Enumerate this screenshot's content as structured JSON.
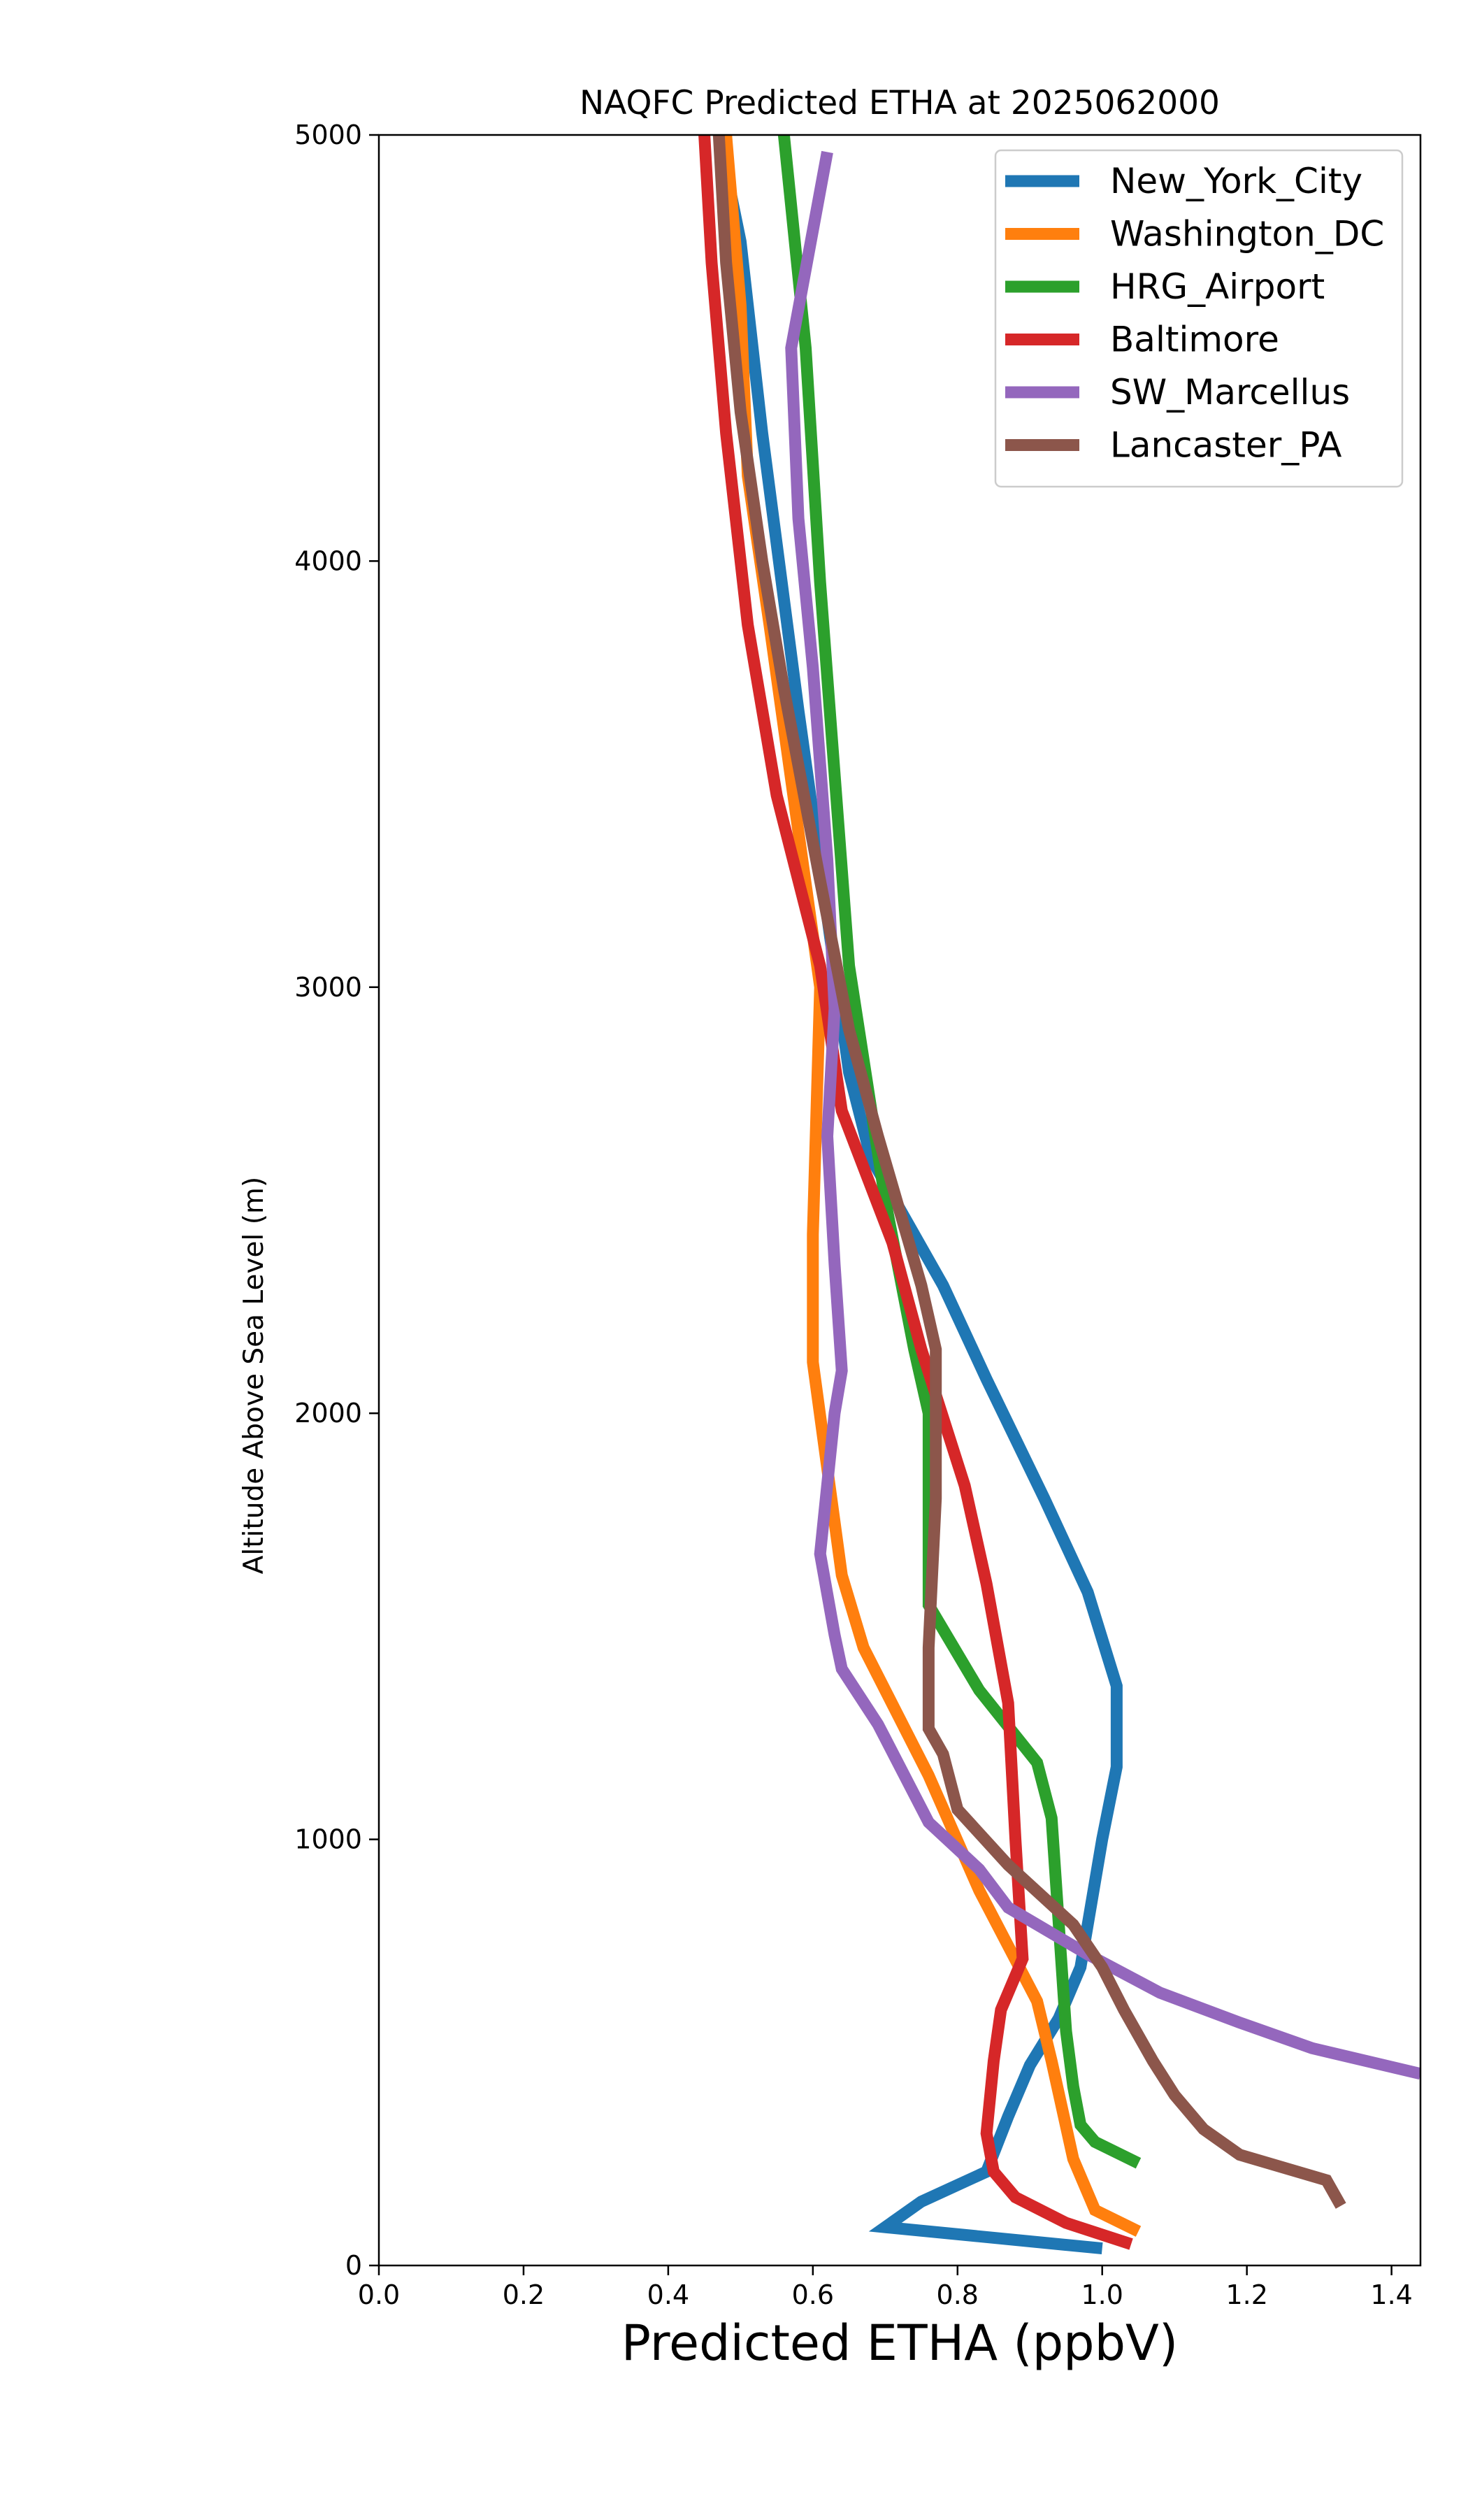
{
  "chart_data": {
    "type": "line",
    "title": "NAQFC Predicted ETHA at 2025062000",
    "xlabel": "Predicted ETHA (ppbV)",
    "ylabel": "Altitude Above Sea Level (m)",
    "xlim": [
      0.0,
      1.44
    ],
    "ylim": [
      0,
      5000
    ],
    "xticks": [
      "0.0",
      "0.2",
      "0.4",
      "0.6",
      "0.8",
      "1.0",
      "1.2",
      "1.4"
    ],
    "yticks": [
      "0",
      "1000",
      "2000",
      "3000",
      "4000",
      "5000"
    ],
    "grid": false,
    "legend_position": "top-right",
    "series": [
      {
        "name": "New_York_City",
        "color": "#1f77b4",
        "points": [
          [
            1.0,
            40
          ],
          [
            0.7,
            90
          ],
          [
            0.75,
            150
          ],
          [
            0.84,
            220
          ],
          [
            0.87,
            350
          ],
          [
            0.9,
            470
          ],
          [
            0.94,
            580
          ],
          [
            0.97,
            700
          ],
          [
            1.0,
            1000
          ],
          [
            1.02,
            1170
          ],
          [
            1.02,
            1360
          ],
          [
            0.98,
            1580
          ],
          [
            0.92,
            1800
          ],
          [
            0.84,
            2080
          ],
          [
            0.78,
            2300
          ],
          [
            0.68,
            2600
          ],
          [
            0.65,
            2800
          ],
          [
            0.58,
            3650
          ],
          [
            0.53,
            4300
          ],
          [
            0.5,
            4750
          ],
          [
            0.47,
            5000
          ]
        ]
      },
      {
        "name": "Washington_DC",
        "color": "#ff7f0e",
        "points": [
          [
            1.05,
            80
          ],
          [
            0.99,
            130
          ],
          [
            0.96,
            250
          ],
          [
            0.93,
            480
          ],
          [
            0.91,
            620
          ],
          [
            0.83,
            880
          ],
          [
            0.76,
            1150
          ],
          [
            0.67,
            1450
          ],
          [
            0.64,
            1620
          ],
          [
            0.6,
            2120
          ],
          [
            0.6,
            2420
          ],
          [
            0.61,
            3000
          ],
          [
            0.54,
            3850
          ],
          [
            0.51,
            4200
          ],
          [
            0.5,
            4600
          ],
          [
            0.48,
            5000
          ]
        ]
      },
      {
        "name": "HRG_Airport",
        "color": "#2ca02c",
        "points": [
          [
            1.05,
            240
          ],
          [
            0.99,
            290
          ],
          [
            0.97,
            330
          ],
          [
            0.96,
            420
          ],
          [
            0.95,
            550
          ],
          [
            0.93,
            1050
          ],
          [
            0.91,
            1180
          ],
          [
            0.83,
            1350
          ],
          [
            0.76,
            1550
          ],
          [
            0.76,
            2000
          ],
          [
            0.74,
            2150
          ],
          [
            0.7,
            2500
          ],
          [
            0.65,
            3050
          ],
          [
            0.61,
            3950
          ],
          [
            0.59,
            4500
          ],
          [
            0.56,
            5000
          ]
        ]
      },
      {
        "name": "Baltimore",
        "color": "#d62728",
        "points": [
          [
            1.04,
            50
          ],
          [
            0.95,
            100
          ],
          [
            0.88,
            160
          ],
          [
            0.85,
            220
          ],
          [
            0.84,
            310
          ],
          [
            0.85,
            480
          ],
          [
            0.86,
            600
          ],
          [
            0.89,
            720
          ],
          [
            0.88,
            1000
          ],
          [
            0.87,
            1320
          ],
          [
            0.84,
            1600
          ],
          [
            0.81,
            1830
          ],
          [
            0.75,
            2150
          ],
          [
            0.71,
            2400
          ],
          [
            0.64,
            2710
          ],
          [
            0.61,
            3050
          ],
          [
            0.55,
            3450
          ],
          [
            0.51,
            3850
          ],
          [
            0.48,
            4300
          ],
          [
            0.46,
            4700
          ],
          [
            0.45,
            5000
          ]
        ]
      },
      {
        "name": "SW_Marcellus",
        "color": "#9467bd",
        "points": [
          [
            1.44,
            450
          ],
          [
            1.29,
            510
          ],
          [
            1.19,
            570
          ],
          [
            1.08,
            640
          ],
          [
            0.98,
            730
          ],
          [
            0.91,
            800
          ],
          [
            0.87,
            840
          ],
          [
            0.83,
            930
          ],
          [
            0.76,
            1040
          ],
          [
            0.69,
            1270
          ],
          [
            0.64,
            1400
          ],
          [
            0.63,
            1480
          ],
          [
            0.61,
            1670
          ],
          [
            0.63,
            2000
          ],
          [
            0.64,
            2100
          ],
          [
            0.63,
            2350
          ],
          [
            0.62,
            2650
          ],
          [
            0.63,
            2950
          ],
          [
            0.62,
            3300
          ],
          [
            0.6,
            3750
          ],
          [
            0.58,
            4100
          ],
          [
            0.57,
            4500
          ],
          [
            0.62,
            4960
          ]
        ]
      },
      {
        "name": "Lancaster_PA",
        "color": "#8c564b",
        "points": [
          [
            1.33,
            140
          ],
          [
            1.31,
            200
          ],
          [
            1.19,
            260
          ],
          [
            1.14,
            320
          ],
          [
            1.1,
            400
          ],
          [
            1.07,
            480
          ],
          [
            1.03,
            600
          ],
          [
            1.0,
            700
          ],
          [
            0.96,
            800
          ],
          [
            0.87,
            940
          ],
          [
            0.8,
            1070
          ],
          [
            0.78,
            1200
          ],
          [
            0.76,
            1260
          ],
          [
            0.76,
            1450
          ],
          [
            0.77,
            1800
          ],
          [
            0.77,
            2150
          ],
          [
            0.75,
            2300
          ],
          [
            0.69,
            2650
          ],
          [
            0.65,
            2900
          ],
          [
            0.61,
            3250
          ],
          [
            0.56,
            3700
          ],
          [
            0.53,
            4000
          ],
          [
            0.5,
            4350
          ],
          [
            0.48,
            4700
          ],
          [
            0.47,
            5000
          ]
        ]
      }
    ]
  }
}
